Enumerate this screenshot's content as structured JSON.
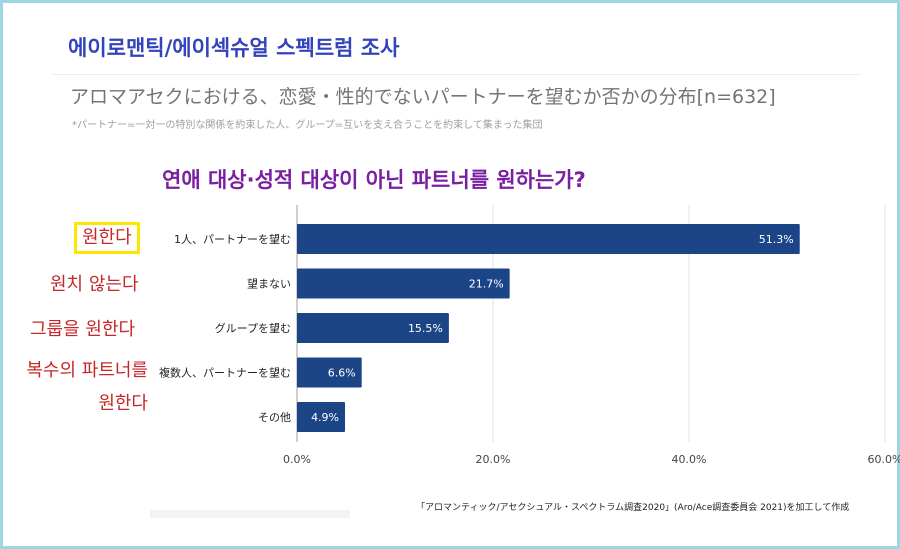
{
  "page_title": "에이로맨틱/에이섹슈얼 스펙트럼 조사",
  "korean_question": "연애 대상·성적 대상이 아닌 파트너를 원하는가?",
  "korean_labels": [
    "원한다",
    "원치 않는다",
    "그룹을 원한다",
    "복수의 파트너를",
    "원한다"
  ],
  "footnote": "「アロマンティック/アセクシュアル・スペクトラム調査2020」(Aro/Ace調査委員会 2021)を加工して作成",
  "colors": {
    "bar": "#1c4587",
    "grid": "#e0e0e0",
    "highlight_box": "#ffe600",
    "korean_label": "#c62828"
  },
  "chart_data": {
    "type": "bar",
    "orientation": "horizontal",
    "title": "アロマアセクにおける、恋愛・性的でないパートナーを望むか否かの分布[n=632]",
    "subtitle": "*パートナー=一対一の特別な関係を約束した人、グループ=互いを支え合うことを約束して集まった集団",
    "categories": [
      "1人、パートナーを望む",
      "望まない",
      "グループを望む",
      "複数人、パートナーを望む",
      "その他"
    ],
    "values": [
      51.3,
      21.7,
      15.5,
      6.6,
      4.9
    ],
    "value_labels": [
      "51.3%",
      "21.7%",
      "15.5%",
      "6.6%",
      "4.9%"
    ],
    "xlim": [
      0,
      60
    ],
    "xticks": [
      0,
      20,
      40,
      60
    ],
    "xtick_labels": [
      "0.0%",
      "20.0%",
      "40.0%",
      "60.0%"
    ],
    "legend": "none",
    "grid": true
  }
}
